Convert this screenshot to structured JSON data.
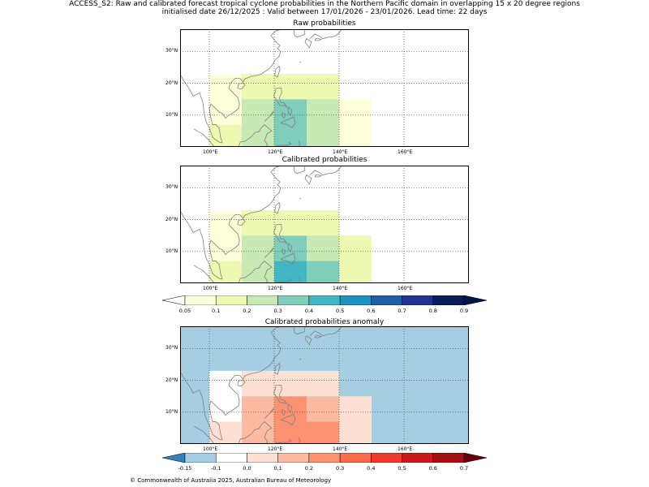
{
  "title": {
    "line1": "ACCESS_S2: Raw and calibrated forecast tropical cyclone probabilities in the Northern Pacific domain in overlapping 15 x 20 degree regions",
    "line2": "initialised date 26/12/2025 :  Valid between 17/01/2026 - 23/01/2026. Lead time: 22 days"
  },
  "panels": {
    "raw": {
      "title": "Raw probabilities",
      "cells": [
        {
          "lon": [
            100,
            110
          ],
          "lat": [
            0,
            7
          ],
          "p": 0.1
        },
        {
          "lon": [
            100,
            110
          ],
          "lat": [
            7,
            23
          ],
          "p": 0.05
        },
        {
          "lon": [
            110,
            120
          ],
          "lat": [
            0,
            15
          ],
          "p": 0.2
        },
        {
          "lon": [
            110,
            120
          ],
          "lat": [
            15,
            23
          ],
          "p": 0.1
        },
        {
          "lon": [
            120,
            130
          ],
          "lat": [
            0,
            15
          ],
          "p": 0.3
        },
        {
          "lon": [
            120,
            130
          ],
          "lat": [
            15,
            23
          ],
          "p": 0.1
        },
        {
          "lon": [
            130,
            140
          ],
          "lat": [
            0,
            15
          ],
          "p": 0.2
        },
        {
          "lon": [
            130,
            140
          ],
          "lat": [
            15,
            23
          ],
          "p": 0.1
        },
        {
          "lon": [
            140,
            150
          ],
          "lat": [
            0,
            15
          ],
          "p": 0.05
        }
      ]
    },
    "calibrated": {
      "title": "Calibrated probabilities",
      "cells": [
        {
          "lon": [
            100,
            110
          ],
          "lat": [
            0,
            7
          ],
          "p": 0.1
        },
        {
          "lon": [
            100,
            110
          ],
          "lat": [
            7,
            23
          ],
          "p": 0.05
        },
        {
          "lon": [
            110,
            120
          ],
          "lat": [
            0,
            7
          ],
          "p": 0.2
        },
        {
          "lon": [
            110,
            120
          ],
          "lat": [
            7,
            15
          ],
          "p": 0.2
        },
        {
          "lon": [
            110,
            120
          ],
          "lat": [
            15,
            23
          ],
          "p": 0.1
        },
        {
          "lon": [
            120,
            130
          ],
          "lat": [
            0,
            7
          ],
          "p": 0.4
        },
        {
          "lon": [
            120,
            130
          ],
          "lat": [
            7,
            15
          ],
          "p": 0.3
        },
        {
          "lon": [
            120,
            130
          ],
          "lat": [
            15,
            23
          ],
          "p": 0.1
        },
        {
          "lon": [
            130,
            140
          ],
          "lat": [
            0,
            7
          ],
          "p": 0.3
        },
        {
          "lon": [
            130,
            140
          ],
          "lat": [
            7,
            15
          ],
          "p": 0.2
        },
        {
          "lon": [
            130,
            140
          ],
          "lat": [
            15,
            23
          ],
          "p": 0.1
        },
        {
          "lon": [
            140,
            150
          ],
          "lat": [
            0,
            15
          ],
          "p": 0.1
        }
      ]
    },
    "anomaly": {
      "title": "Calibrated probabilities anomaly",
      "background": -0.15,
      "cells": [
        {
          "lon": [
            100,
            110
          ],
          "lat": [
            0,
            7
          ],
          "p": 0.0
        },
        {
          "lon": [
            100,
            110
          ],
          "lat": [
            7,
            23
          ],
          "p": -0.1
        },
        {
          "lon": [
            110,
            120
          ],
          "lat": [
            0,
            15
          ],
          "p": 0.1
        },
        {
          "lon": [
            110,
            120
          ],
          "lat": [
            15,
            23
          ],
          "p": 0.0
        },
        {
          "lon": [
            120,
            130
          ],
          "lat": [
            0,
            7
          ],
          "p": 0.2
        },
        {
          "lon": [
            120,
            130
          ],
          "lat": [
            7,
            15
          ],
          "p": 0.2
        },
        {
          "lon": [
            120,
            130
          ],
          "lat": [
            15,
            23
          ],
          "p": 0.0
        },
        {
          "lon": [
            130,
            140
          ],
          "lat": [
            0,
            7
          ],
          "p": 0.2
        },
        {
          "lon": [
            130,
            140
          ],
          "lat": [
            7,
            15
          ],
          "p": 0.1
        },
        {
          "lon": [
            130,
            140
          ],
          "lat": [
            15,
            23
          ],
          "p": 0.0
        },
        {
          "lon": [
            140,
            150
          ],
          "lat": [
            0,
            15
          ],
          "p": 0.0
        }
      ]
    }
  },
  "axes": {
    "lon_range": [
      91,
      180
    ],
    "lat_range": [
      0,
      37
    ],
    "lon_ticks": [
      "100°E",
      "120°E",
      "140°E",
      "160°E"
    ],
    "lat_ticks": [
      "10°N",
      "20°N",
      "30°N"
    ],
    "lon_tick_values": [
      100,
      120,
      140,
      160
    ],
    "lat_tick_values": [
      10,
      20,
      30
    ]
  },
  "colorbars": {
    "probability": {
      "labels": [
        "0.05",
        "0.1",
        "0.2",
        "0.3",
        "0.4",
        "0.5",
        "0.6",
        "0.7",
        "0.8",
        "0.9"
      ],
      "colors": [
        "#ffffd9",
        "#edf8b1",
        "#c7e9b4",
        "#7fcdbb",
        "#41b6c4",
        "#1d91c0",
        "#225ea8",
        "#253494",
        "#081d58"
      ],
      "under": "#ffffff",
      "over": "#061546"
    },
    "anomaly": {
      "labels": [
        "-0.15",
        "-0.1",
        "0.0",
        "0.1",
        "0.2",
        "0.3",
        "0.4",
        "0.5",
        "0.6",
        "0.7"
      ],
      "colors": [
        "#a6cee3",
        "#ffffff",
        "#fee0d2",
        "#fcbba1",
        "#fc9272",
        "#fb6a4a",
        "#ef3b2c",
        "#cb181d",
        "#a50f15"
      ],
      "under": "#3182bd",
      "over": "#67000d"
    }
  },
  "colors": {
    "raw_0.05": "#ffffd9",
    "raw_0.1": "#edf8b1",
    "raw_0.2": "#c7e9b4",
    "raw_0.3": "#7fcdbb",
    "raw_0.4": "#41b6c4",
    "anom_neg015": "#3182bd",
    "anom_neg01": "#a6cee3",
    "anom_0": "#ffffff",
    "anom_01": "#fee0d2",
    "anom_02": "#fcbba1",
    "anom_03": "#fc9272"
  },
  "footer": "© Commonwealth of Australia 2025, Australian Bureau of Meteorology"
}
